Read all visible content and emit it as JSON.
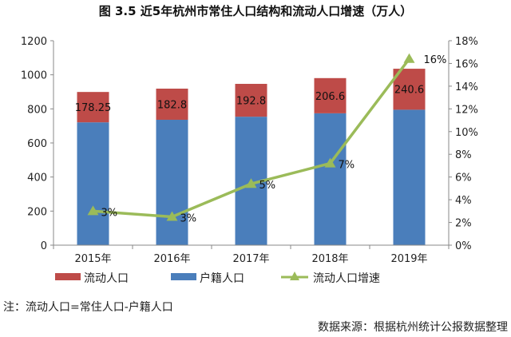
{
  "chart_data": {
    "type": "bar",
    "title": "图 3.5   近5年杭州市常住人口结构和流动人口增速（万人）",
    "categories": [
      "2015年",
      "2016年",
      "2017年",
      "2018年",
      "2019年"
    ],
    "stacked": true,
    "series": [
      {
        "name": "户籍人口",
        "type": "bar",
        "axis": "left",
        "color": "#4a7ebb",
        "values": [
          721,
          736,
          754,
          774,
          795
        ]
      },
      {
        "name": "流动人口",
        "type": "bar",
        "axis": "left",
        "color": "#be4b48",
        "values": [
          178.25,
          182.8,
          192.8,
          206.6,
          240.6
        ],
        "labels": [
          "178.25",
          "182.8",
          "192.8",
          "206.6",
          "240.6"
        ]
      },
      {
        "name": "流动人口增速",
        "type": "line",
        "axis": "right",
        "color": "#9bbb59",
        "marker": "triangle",
        "values": [
          3.0,
          2.5,
          5.4,
          7.2,
          16.4
        ],
        "labels": [
          "3%",
          "3%",
          "5%",
          "7%",
          "16%"
        ]
      }
    ],
    "ylim": [
      0,
      1200
    ],
    "yticks": [
      "0",
      "200",
      "400",
      "600",
      "800",
      "1000",
      "1200"
    ],
    "y2lim": [
      0,
      18
    ],
    "y2ticks": [
      "0%",
      "2%",
      "4%",
      "6%",
      "8%",
      "10%",
      "12%",
      "14%",
      "16%",
      "18%"
    ],
    "grid": false,
    "legend": "bottom",
    "legend_order": [
      "流动人口",
      "户籍人口",
      "流动人口增速"
    ]
  },
  "note": "注：流动人口=常住人口-户籍人口",
  "source": "数据来源：根据杭州统计公报数据整理"
}
